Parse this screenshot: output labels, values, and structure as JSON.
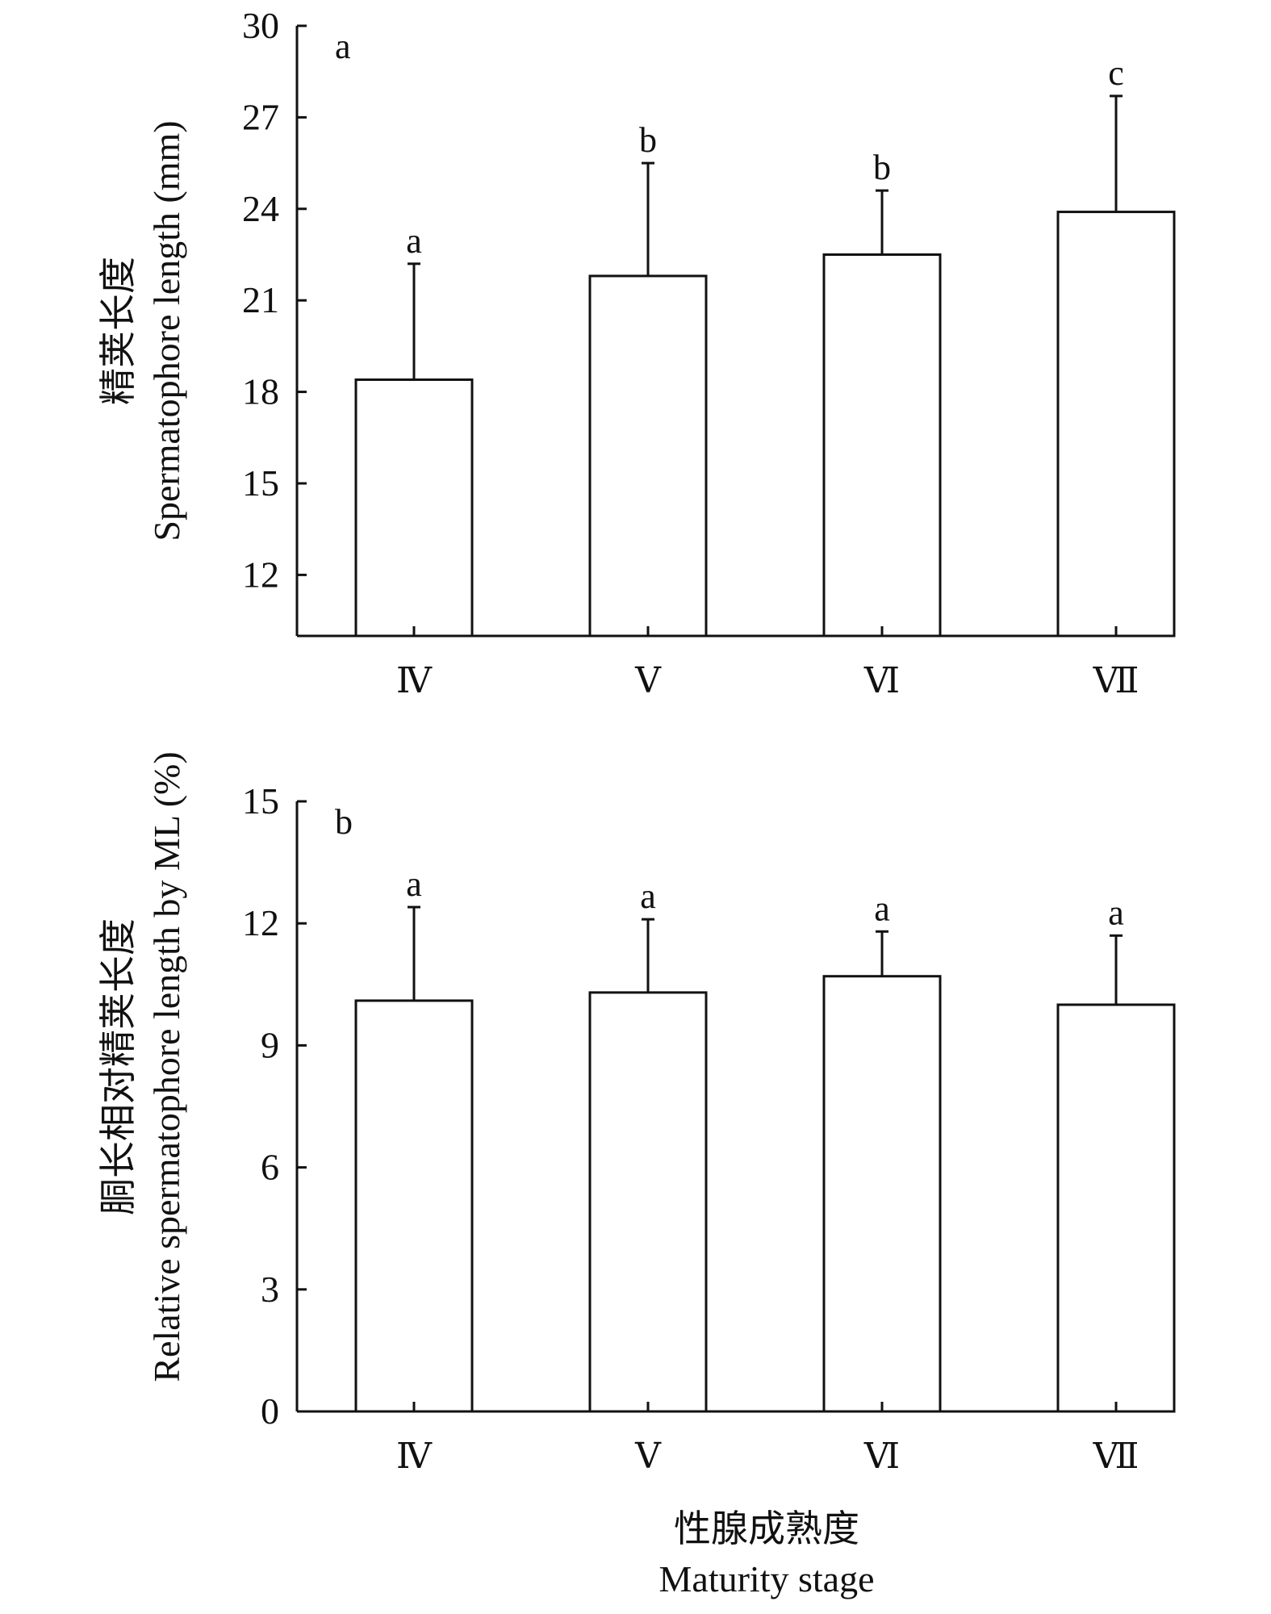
{
  "xlabel": {
    "zh": "性腺成熟度",
    "en": "Maturity stage"
  },
  "chart_data": [
    {
      "type": "bar",
      "panel": "a",
      "categories": [
        "Ⅳ",
        "Ⅴ",
        "Ⅵ",
        "Ⅶ"
      ],
      "values": [
        18.4,
        21.8,
        22.5,
        23.9
      ],
      "errors": [
        3.8,
        3.7,
        2.1,
        3.8
      ],
      "significance": [
        "a",
        "b",
        "b",
        "c"
      ],
      "ylabel": {
        "zh": "精荚长度",
        "en": "Spermatophore length (mm)"
      },
      "ylim": [
        10,
        30
      ],
      "yticks": [
        12,
        15,
        18,
        21,
        24,
        27,
        30
      ],
      "grid": false,
      "legend": "none"
    },
    {
      "type": "bar",
      "panel": "b",
      "categories": [
        "Ⅳ",
        "Ⅴ",
        "Ⅵ",
        "Ⅶ"
      ],
      "values": [
        10.1,
        10.3,
        10.7,
        10.0
      ],
      "errors": [
        2.3,
        1.8,
        1.1,
        1.7
      ],
      "significance": [
        "a",
        "a",
        "a",
        "a"
      ],
      "ylabel": {
        "zh": "胴长相对精荚长度",
        "en": "Relative spermatophore length by ML (%)"
      },
      "ylim": [
        0,
        15
      ],
      "yticks": [
        0,
        3,
        6,
        9,
        12,
        15
      ],
      "grid": false,
      "legend": "none"
    }
  ]
}
